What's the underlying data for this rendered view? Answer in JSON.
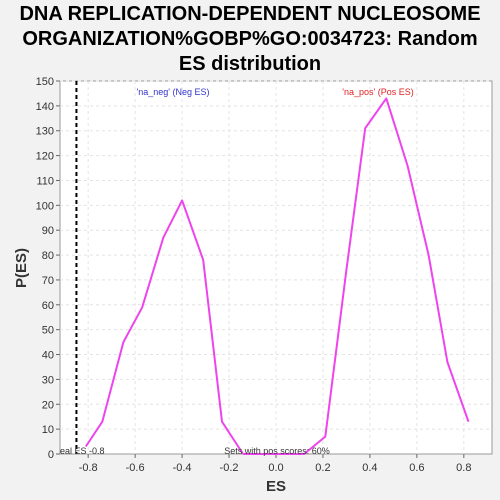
{
  "chart_data": {
    "type": "line",
    "title_lines": [
      "DNA REPLICATION-DEPENDENT NUCLEOSOME",
      "ORGANIZATION%GOBP%GO:0034723: Random",
      "ES distribution"
    ],
    "xlabel": "ES",
    "ylabel": "P(ES)",
    "xlim": [
      -0.92,
      0.92
    ],
    "ylim": [
      0,
      150
    ],
    "xticks": [
      -0.8,
      -0.6,
      -0.4,
      -0.2,
      0.0,
      0.2,
      0.4,
      0.6,
      0.8
    ],
    "xtick_labels": [
      "-0.8",
      "-0.6",
      "-0.4",
      "-0.2",
      "0.0",
      "0.2",
      "0.4",
      "0.6",
      "0.8"
    ],
    "yticks": [
      0,
      10,
      20,
      30,
      40,
      50,
      60,
      70,
      80,
      90,
      100,
      110,
      120,
      130,
      140,
      150
    ],
    "grid": true,
    "series": [
      {
        "name": "'na_neg' (Neg ES)",
        "color": "#ee44ee",
        "x": [
          -0.81,
          -0.74,
          -0.65,
          -0.57,
          -0.48,
          -0.4,
          -0.31,
          -0.23,
          -0.14
        ],
        "y": [
          3,
          13,
          45,
          59,
          87,
          102,
          78,
          13,
          0
        ]
      },
      {
        "name": "'na_pos' (Pos ES)",
        "color": "#ee44ee",
        "x": [
          -0.14,
          -0.06,
          0.03,
          0.12,
          0.21,
          0.3,
          0.38,
          0.47,
          0.56,
          0.65,
          0.73,
          0.82
        ],
        "y": [
          0,
          0,
          0,
          0,
          7,
          74,
          131,
          143,
          116,
          80,
          37,
          13
        ]
      }
    ],
    "legend": [
      {
        "label": "'na_neg' (Neg ES)",
        "color": "#3333cc"
      },
      {
        "label": "'na_pos' (Pos ES)",
        "color": "#dd2222"
      }
    ],
    "vline": {
      "x": -0.85,
      "label": "eal ES -0.8"
    },
    "annotation": "Sets with pos scores: 60%"
  }
}
